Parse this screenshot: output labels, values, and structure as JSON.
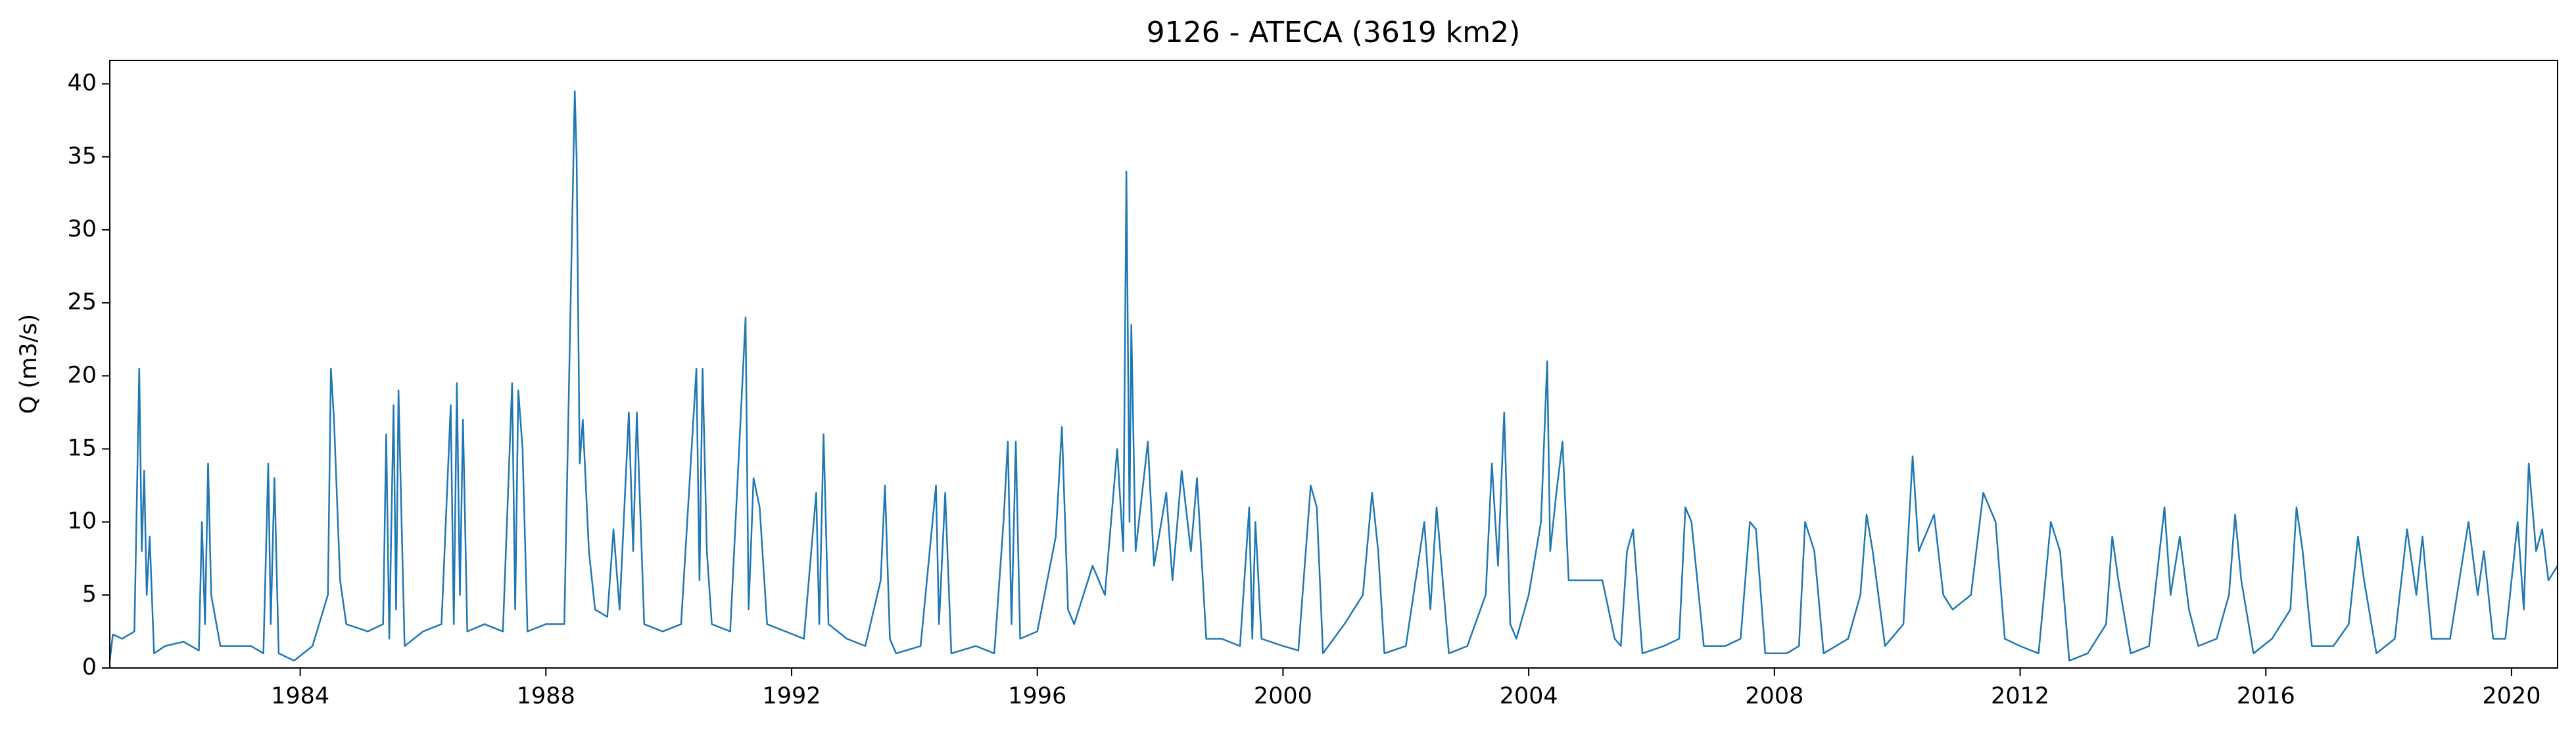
{
  "chart_data": {
    "type": "line",
    "title": "9126 - ATECA (3619 km2)",
    "ylabel": "Q (m3/s)",
    "color": "#1f77b4",
    "x": [
      1980.9,
      1980.95,
      1981.1,
      1981.3,
      1981.38,
      1981.42,
      1981.46,
      1981.5,
      1981.55,
      1981.62,
      1981.8,
      1982.1,
      1982.35,
      1982.4,
      1982.45,
      1982.5,
      1982.55,
      1982.7,
      1983.2,
      1983.4,
      1983.48,
      1983.52,
      1983.58,
      1983.65,
      1983.9,
      1984.2,
      1984.45,
      1984.5,
      1984.55,
      1984.65,
      1984.75,
      1985.1,
      1985.35,
      1985.4,
      1985.45,
      1985.52,
      1985.56,
      1985.6,
      1985.65,
      1985.7,
      1986.0,
      1986.3,
      1986.45,
      1986.5,
      1986.55,
      1986.6,
      1986.65,
      1986.72,
      1987.0,
      1987.3,
      1987.45,
      1987.5,
      1987.55,
      1987.62,
      1987.7,
      1988.0,
      1988.3,
      1988.42,
      1988.47,
      1988.5,
      1988.55,
      1988.6,
      1988.7,
      1988.8,
      1989.0,
      1989.1,
      1989.2,
      1989.35,
      1989.42,
      1989.48,
      1989.6,
      1989.9,
      1990.2,
      1990.45,
      1990.5,
      1990.55,
      1990.62,
      1990.7,
      1991.0,
      1991.25,
      1991.3,
      1991.38,
      1991.48,
      1991.6,
      1991.9,
      1992.2,
      1992.4,
      1992.45,
      1992.52,
      1992.6,
      1992.9,
      1993.2,
      1993.45,
      1993.52,
      1993.6,
      1993.7,
      1994.1,
      1994.35,
      1994.4,
      1994.5,
      1994.6,
      1995.0,
      1995.3,
      1995.45,
      1995.52,
      1995.58,
      1995.65,
      1995.72,
      1996.0,
      1996.3,
      1996.4,
      1996.5,
      1996.6,
      1996.9,
      1997.1,
      1997.3,
      1997.4,
      1997.45,
      1997.5,
      1997.53,
      1997.6,
      1997.8,
      1997.9,
      1998.1,
      1998.2,
      1998.35,
      1998.5,
      1998.6,
      1998.75,
      1999.0,
      1999.3,
      1999.45,
      1999.5,
      1999.55,
      1999.65,
      2000.0,
      2000.25,
      2000.45,
      2000.55,
      2000.65,
      2001.0,
      2001.3,
      2001.45,
      2001.55,
      2001.65,
      2002.0,
      2002.3,
      2002.4,
      2002.5,
      2002.7,
      2003.0,
      2003.3,
      2003.4,
      2003.5,
      2003.6,
      2003.7,
      2003.8,
      2004.0,
      2004.2,
      2004.3,
      2004.35,
      2004.45,
      2004.55,
      2004.65,
      2004.8,
      2005.2,
      2005.4,
      2005.5,
      2005.6,
      2005.7,
      2005.85,
      2006.2,
      2006.45,
      2006.55,
      2006.65,
      2006.85,
      2007.2,
      2007.45,
      2007.6,
      2007.7,
      2007.85,
      2008.2,
      2008.4,
      2008.5,
      2008.65,
      2008.8,
      2009.2,
      2009.4,
      2009.5,
      2009.6,
      2009.8,
      2010.1,
      2010.25,
      2010.35,
      2010.6,
      2010.75,
      2010.9,
      2011.2,
      2011.4,
      2011.6,
      2011.75,
      2012.0,
      2012.3,
      2012.5,
      2012.65,
      2012.8,
      2013.1,
      2013.4,
      2013.5,
      2013.6,
      2013.8,
      2014.1,
      2014.35,
      2014.45,
      2014.6,
      2014.75,
      2014.9,
      2015.2,
      2015.4,
      2015.5,
      2015.6,
      2015.8,
      2016.1,
      2016.4,
      2016.5,
      2016.6,
      2016.75,
      2017.1,
      2017.35,
      2017.5,
      2017.6,
      2017.8,
      2018.1,
      2018.3,
      2018.45,
      2018.55,
      2018.7,
      2019.0,
      2019.3,
      2019.45,
      2019.55,
      2019.7,
      2019.9,
      2020.1,
      2020.2,
      2020.28,
      2020.4,
      2020.5,
      2020.6,
      2020.75
    ],
    "values": [
      0.5,
      2.3,
      2,
      2.5,
      20.5,
      8,
      13.5,
      5,
      9,
      1,
      1.5,
      1.8,
      1.2,
      10,
      3,
      14,
      5,
      1.5,
      1.5,
      1,
      14,
      3,
      13,
      1,
      0.5,
      1.5,
      5,
      20.5,
      17,
      6,
      3,
      2.5,
      3,
      16,
      2,
      18,
      4,
      19,
      10,
      1.5,
      2.5,
      3,
      18,
      3,
      19.5,
      5,
      17,
      2.5,
      3,
      2.5,
      19.5,
      4,
      19,
      15,
      2.5,
      3,
      3,
      29,
      39.5,
      35,
      14,
      17,
      8,
      4,
      3.5,
      9.5,
      4,
      17.5,
      8,
      17.5,
      3,
      2.5,
      3,
      20.5,
      6,
      20.5,
      8,
      3,
      2.5,
      24,
      4,
      13,
      11,
      3,
      2.5,
      2,
      12,
      3,
      16,
      3,
      2,
      1.5,
      6,
      12.5,
      2,
      1,
      1.5,
      12.5,
      3,
      12,
      1,
      1.5,
      1,
      10,
      15.5,
      3,
      15.5,
      2,
      2.5,
      9,
      16.5,
      4,
      3,
      7,
      5,
      15,
      8,
      34,
      10,
      23.5,
      8,
      15.5,
      7,
      12,
      6,
      13.5,
      8,
      13,
      2,
      2,
      1.5,
      11,
      2,
      10,
      2,
      1.5,
      1.2,
      12.5,
      11,
      1,
      3,
      5,
      12,
      8,
      1,
      1.5,
      10,
      4,
      11,
      1,
      1.5,
      5,
      14,
      7,
      17.5,
      3,
      2,
      5,
      10,
      21,
      8,
      12,
      15.5,
      6,
      6,
      6,
      2,
      1.5,
      8,
      9.5,
      1,
      1.5,
      2,
      11,
      10,
      1.5,
      1.5,
      2,
      10,
      9.5,
      1,
      1,
      1.5,
      10,
      8,
      1,
      2,
      5,
      10.5,
      8,
      1.5,
      3,
      14.5,
      8,
      10.5,
      5,
      4,
      5,
      12,
      10,
      2,
      1.5,
      1,
      10,
      8,
      0.5,
      1,
      3,
      9,
      6,
      1,
      1.5,
      11,
      5,
      9,
      4,
      1.5,
      2,
      5,
      10.5,
      6,
      1,
      2,
      4,
      11,
      8,
      1.5,
      1.5,
      3,
      9,
      6,
      1,
      2,
      9.5,
      5,
      9,
      2,
      2,
      10,
      5,
      8,
      2,
      2,
      10,
      4,
      14,
      8,
      9.5,
      6,
      7
    ],
    "xlim": [
      1980.9,
      2020.75
    ],
    "xticks": [
      1984,
      1988,
      1992,
      1996,
      2000,
      2004,
      2008,
      2012,
      2016,
      2020
    ],
    "ylim": [
      0,
      41.6
    ],
    "yticks": [
      0,
      5,
      10,
      15,
      20,
      25,
      30,
      35,
      40
    ]
  }
}
